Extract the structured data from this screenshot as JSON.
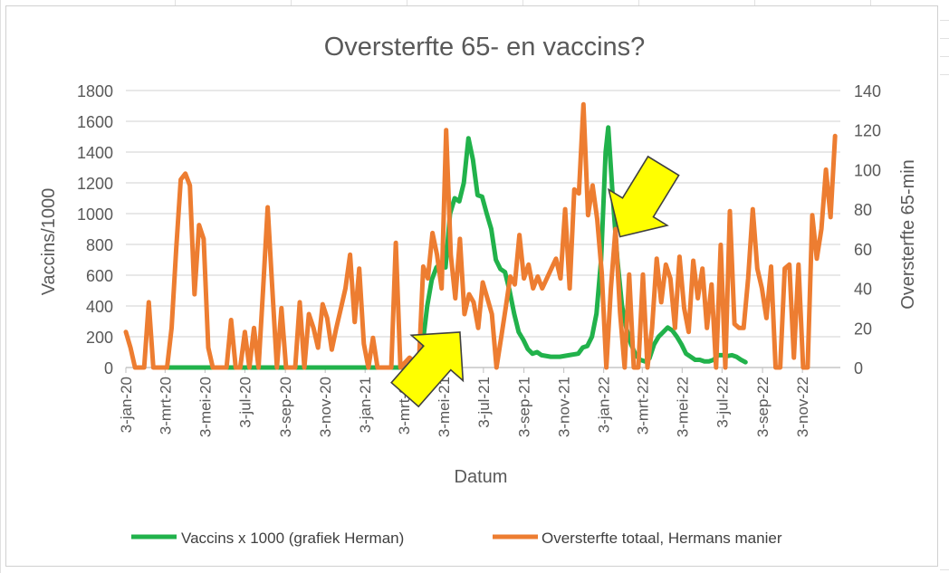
{
  "chart_data": {
    "type": "line",
    "title": "Oversterfte 65- en vaccins?",
    "xlabel": "Datum",
    "ylabel_left": "Vaccins/1000",
    "ylabel_right": "Oversterfte 65-min",
    "ylim_left": [
      0,
      1800
    ],
    "ylim_right": [
      0,
      140
    ],
    "yticks_left": [
      "0",
      "200",
      "400",
      "600",
      "800",
      "1000",
      "1200",
      "1400",
      "1600",
      "1800"
    ],
    "yticks_right": [
      "0",
      "20",
      "40",
      "60",
      "80",
      "100",
      "120",
      "140"
    ],
    "x_range": [
      "2020-01-03",
      "2022-12-31"
    ],
    "x_ticks": [
      {
        "date": "2020-01-03",
        "label": "3-jan-20"
      },
      {
        "date": "2020-03-03",
        "label": "3-mrt-20"
      },
      {
        "date": "2020-05-03",
        "label": "3-mei-20"
      },
      {
        "date": "2020-07-03",
        "label": "3-jul-20"
      },
      {
        "date": "2020-09-03",
        "label": "3-sep-20"
      },
      {
        "date": "2020-11-03",
        "label": "3-nov-20"
      },
      {
        "date": "2021-01-03",
        "label": "3-jan-21"
      },
      {
        "date": "2021-03-03",
        "label": "3-mrt-21"
      },
      {
        "date": "2021-05-03",
        "label": "3-mei-21"
      },
      {
        "date": "2021-07-03",
        "label": "3-jul-21"
      },
      {
        "date": "2021-09-03",
        "label": "3-sep-21"
      },
      {
        "date": "2021-11-03",
        "label": "3-nov-21"
      },
      {
        "date": "2022-01-03",
        "label": "3-jan-22"
      },
      {
        "date": "2022-03-03",
        "label": "3-mrt-22"
      },
      {
        "date": "2022-05-03",
        "label": "3-mei-22"
      },
      {
        "date": "2022-07-03",
        "label": "3-jul-22"
      },
      {
        "date": "2022-09-03",
        "label": "3-sep-22"
      },
      {
        "date": "2022-11-03",
        "label": "3-nov-22"
      }
    ],
    "grid": true,
    "legend_position": "bottom",
    "series": [
      {
        "name": "Vaccins x 1000 (grafiek Herman)",
        "axis": "left",
        "color": "#21b24b",
        "points": [
          [
            "2020-03-01",
            0
          ],
          [
            "2020-06-01",
            0
          ],
          [
            "2020-09-01",
            0
          ],
          [
            "2020-12-01",
            0
          ],
          [
            "2021-03-01",
            0
          ],
          [
            "2021-03-25",
            0
          ],
          [
            "2021-04-01",
            150
          ],
          [
            "2021-04-08",
            400
          ],
          [
            "2021-04-15",
            570
          ],
          [
            "2021-04-22",
            650
          ],
          [
            "2021-04-29",
            680
          ],
          [
            "2021-05-06",
            650
          ],
          [
            "2021-05-13",
            1000
          ],
          [
            "2021-05-20",
            1100
          ],
          [
            "2021-05-27",
            1080
          ],
          [
            "2021-06-03",
            1200
          ],
          [
            "2021-06-10",
            1490
          ],
          [
            "2021-06-17",
            1350
          ],
          [
            "2021-06-24",
            1120
          ],
          [
            "2021-07-01",
            1110
          ],
          [
            "2021-07-08",
            1000
          ],
          [
            "2021-07-15",
            900
          ],
          [
            "2021-07-22",
            700
          ],
          [
            "2021-07-29",
            640
          ],
          [
            "2021-08-05",
            620
          ],
          [
            "2021-08-12",
            500
          ],
          [
            "2021-08-19",
            350
          ],
          [
            "2021-08-26",
            230
          ],
          [
            "2021-09-02",
            180
          ],
          [
            "2021-09-09",
            120
          ],
          [
            "2021-09-16",
            90
          ],
          [
            "2021-09-23",
            100
          ],
          [
            "2021-09-30",
            80
          ],
          [
            "2021-10-14",
            70
          ],
          [
            "2021-10-28",
            70
          ],
          [
            "2021-11-11",
            80
          ],
          [
            "2021-11-25",
            90
          ],
          [
            "2021-12-02",
            130
          ],
          [
            "2021-12-09",
            140
          ],
          [
            "2021-12-16",
            200
          ],
          [
            "2021-12-23",
            350
          ],
          [
            "2021-12-30",
            700
          ],
          [
            "2022-01-06",
            1400
          ],
          [
            "2022-01-10",
            1560
          ],
          [
            "2022-01-17",
            1100
          ],
          [
            "2022-01-24",
            700
          ],
          [
            "2022-01-31",
            400
          ],
          [
            "2022-02-07",
            250
          ],
          [
            "2022-02-14",
            150
          ],
          [
            "2022-02-21",
            80
          ],
          [
            "2022-02-28",
            50
          ],
          [
            "2022-03-07",
            40
          ],
          [
            "2022-03-14",
            60
          ],
          [
            "2022-03-21",
            150
          ],
          [
            "2022-03-28",
            200
          ],
          [
            "2022-04-04",
            230
          ],
          [
            "2022-04-11",
            260
          ],
          [
            "2022-04-18",
            240
          ],
          [
            "2022-04-25",
            200
          ],
          [
            "2022-05-02",
            150
          ],
          [
            "2022-05-09",
            90
          ],
          [
            "2022-05-16",
            70
          ],
          [
            "2022-05-23",
            50
          ],
          [
            "2022-05-30",
            50
          ],
          [
            "2022-06-06",
            40
          ],
          [
            "2022-06-13",
            40
          ],
          [
            "2022-06-20",
            50
          ],
          [
            "2022-06-27",
            80
          ],
          [
            "2022-07-04",
            80
          ],
          [
            "2022-07-11",
            75
          ],
          [
            "2022-07-18",
            80
          ],
          [
            "2022-07-25",
            70
          ],
          [
            "2022-08-01",
            50
          ],
          [
            "2022-08-08",
            35
          ]
        ]
      },
      {
        "name": "Oversterfte totaal, Hermans manier",
        "axis": "right",
        "color": "#ed7d31",
        "points": [
          [
            "2020-01-03",
            18
          ],
          [
            "2020-01-10",
            10
          ],
          [
            "2020-01-17",
            0
          ],
          [
            "2020-01-31",
            0
          ],
          [
            "2020-02-07",
            33
          ],
          [
            "2020-02-14",
            0
          ],
          [
            "2020-03-06",
            0
          ],
          [
            "2020-03-13",
            20
          ],
          [
            "2020-03-20",
            60
          ],
          [
            "2020-03-27",
            95
          ],
          [
            "2020-04-03",
            98
          ],
          [
            "2020-04-10",
            92
          ],
          [
            "2020-04-17",
            37
          ],
          [
            "2020-04-24",
            72
          ],
          [
            "2020-05-01",
            65
          ],
          [
            "2020-05-08",
            10
          ],
          [
            "2020-05-15",
            0
          ],
          [
            "2020-06-05",
            0
          ],
          [
            "2020-06-12",
            24
          ],
          [
            "2020-06-19",
            0
          ],
          [
            "2020-06-26",
            0
          ],
          [
            "2020-07-03",
            18
          ],
          [
            "2020-07-10",
            0
          ],
          [
            "2020-07-17",
            20
          ],
          [
            "2020-07-24",
            0
          ],
          [
            "2020-07-31",
            40
          ],
          [
            "2020-08-07",
            81
          ],
          [
            "2020-08-14",
            40
          ],
          [
            "2020-08-21",
            0
          ],
          [
            "2020-08-28",
            30
          ],
          [
            "2020-09-04",
            0
          ],
          [
            "2020-09-18",
            0
          ],
          [
            "2020-09-25",
            33
          ],
          [
            "2020-10-02",
            0
          ],
          [
            "2020-10-09",
            27
          ],
          [
            "2020-10-16",
            20
          ],
          [
            "2020-10-23",
            10
          ],
          [
            "2020-10-30",
            32
          ],
          [
            "2020-11-06",
            25
          ],
          [
            "2020-11-13",
            9
          ],
          [
            "2020-11-20",
            20
          ],
          [
            "2020-11-27",
            30
          ],
          [
            "2020-12-04",
            40
          ],
          [
            "2020-12-11",
            57
          ],
          [
            "2020-12-18",
            23
          ],
          [
            "2020-12-25",
            50
          ],
          [
            "2021-01-01",
            12
          ],
          [
            "2021-01-08",
            0
          ],
          [
            "2021-01-15",
            15
          ],
          [
            "2021-01-22",
            0
          ],
          [
            "2021-02-12",
            0
          ],
          [
            "2021-02-19",
            63
          ],
          [
            "2021-02-26",
            0
          ],
          [
            "2021-03-12",
            5
          ],
          [
            "2021-03-19",
            3
          ],
          [
            "2021-03-26",
            0
          ],
          [
            "2021-04-02",
            51
          ],
          [
            "2021-04-09",
            45
          ],
          [
            "2021-04-16",
            68
          ],
          [
            "2021-04-23",
            57
          ],
          [
            "2021-04-30",
            40
          ],
          [
            "2021-05-07",
            120
          ],
          [
            "2021-05-14",
            57
          ],
          [
            "2021-05-21",
            35
          ],
          [
            "2021-05-28",
            65
          ],
          [
            "2021-06-04",
            27
          ],
          [
            "2021-06-11",
            37
          ],
          [
            "2021-06-18",
            33
          ],
          [
            "2021-06-25",
            20
          ],
          [
            "2021-07-02",
            43
          ],
          [
            "2021-07-09",
            35
          ],
          [
            "2021-07-16",
            27
          ],
          [
            "2021-07-23",
            0
          ],
          [
            "2021-07-30",
            15
          ],
          [
            "2021-08-06",
            30
          ],
          [
            "2021-08-13",
            46
          ],
          [
            "2021-08-20",
            42
          ],
          [
            "2021-08-27",
            67
          ],
          [
            "2021-09-03",
            45
          ],
          [
            "2021-09-10",
            52
          ],
          [
            "2021-09-17",
            40
          ],
          [
            "2021-09-24",
            46
          ],
          [
            "2021-10-01",
            40
          ],
          [
            "2021-10-08",
            45
          ],
          [
            "2021-10-15",
            50
          ],
          [
            "2021-10-22",
            55
          ],
          [
            "2021-10-29",
            45
          ],
          [
            "2021-11-05",
            80
          ],
          [
            "2021-11-12",
            40
          ],
          [
            "2021-11-19",
            90
          ],
          [
            "2021-11-26",
            88
          ],
          [
            "2021-12-03",
            133
          ],
          [
            "2021-12-10",
            77
          ],
          [
            "2021-12-17",
            92
          ],
          [
            "2021-12-24",
            75
          ],
          [
            "2021-12-31",
            48
          ],
          [
            "2022-01-07",
            0
          ],
          [
            "2022-01-14",
            40
          ],
          [
            "2022-01-21",
            70
          ],
          [
            "2022-01-28",
            28
          ],
          [
            "2022-02-04",
            0
          ],
          [
            "2022-02-11",
            47
          ],
          [
            "2022-02-18",
            0
          ],
          [
            "2022-02-25",
            0
          ],
          [
            "2022-03-04",
            47
          ],
          [
            "2022-03-11",
            0
          ],
          [
            "2022-03-18",
            20
          ],
          [
            "2022-03-25",
            55
          ],
          [
            "2022-04-01",
            33
          ],
          [
            "2022-04-08",
            52
          ],
          [
            "2022-04-15",
            45
          ],
          [
            "2022-04-22",
            20
          ],
          [
            "2022-04-29",
            56
          ],
          [
            "2022-05-06",
            30
          ],
          [
            "2022-05-13",
            18
          ],
          [
            "2022-05-20",
            54
          ],
          [
            "2022-05-27",
            35
          ],
          [
            "2022-06-03",
            50
          ],
          [
            "2022-06-10",
            20
          ],
          [
            "2022-06-17",
            42
          ],
          [
            "2022-06-24",
            0
          ],
          [
            "2022-07-01",
            62
          ],
          [
            "2022-07-08",
            0
          ],
          [
            "2022-07-15",
            79
          ],
          [
            "2022-07-22",
            22
          ],
          [
            "2022-07-29",
            20
          ],
          [
            "2022-08-05",
            20
          ],
          [
            "2022-08-12",
            45
          ],
          [
            "2022-08-19",
            80
          ],
          [
            "2022-08-26",
            50
          ],
          [
            "2022-09-02",
            40
          ],
          [
            "2022-09-09",
            25
          ],
          [
            "2022-09-16",
            51
          ],
          [
            "2022-09-23",
            0
          ],
          [
            "2022-09-30",
            0
          ],
          [
            "2022-10-07",
            50
          ],
          [
            "2022-10-14",
            52
          ],
          [
            "2022-10-21",
            5
          ],
          [
            "2022-10-28",
            52
          ],
          [
            "2022-11-04",
            0
          ],
          [
            "2022-11-11",
            0
          ],
          [
            "2022-11-18",
            77
          ],
          [
            "2022-11-25",
            55
          ],
          [
            "2022-12-02",
            70
          ],
          [
            "2022-12-09",
            100
          ],
          [
            "2022-12-16",
            76
          ],
          [
            "2022-12-23",
            117
          ]
        ]
      }
    ],
    "annotations": [
      {
        "type": "arrow",
        "color": "#ffff00",
        "points_to": [
          "2021-05-28",
          230
        ],
        "axis": "left"
      },
      {
        "type": "arrow",
        "color": "#ffff00",
        "points_to": [
          "2022-01-28",
          850
        ],
        "axis": "left"
      }
    ]
  }
}
